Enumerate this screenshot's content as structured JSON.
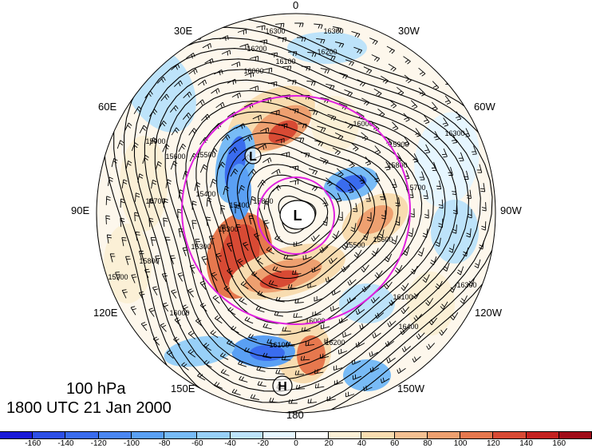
{
  "map": {
    "projection": "north-polar-stereographic",
    "longitude_labels": {
      "top": "0",
      "top_left": "30E",
      "top_right": "30W",
      "upper_left": "60E",
      "upper_right": "60W",
      "left": "90E",
      "right": "90W",
      "lower_left": "120E",
      "lower_right": "120W",
      "bottom_left": "150E",
      "bottom_right": "150W",
      "bottom": "180"
    },
    "contour_labels": [
      "16300",
      "16300",
      "16400",
      "16200",
      "16200",
      "16100",
      "16000",
      "16000",
      "15900",
      "15800",
      "15700",
      "15600",
      "15500",
      "15400",
      "15300",
      "15300",
      "15400",
      "15500",
      "15600",
      "15700",
      "15800",
      "15900",
      "16000",
      "16100",
      "16200",
      "16300",
      "16300",
      "16400",
      "16200",
      "16100",
      "16000",
      "15900",
      "15800"
    ],
    "pressure_centers": [
      {
        "label": "L",
        "kind": "low"
      },
      {
        "label": "L",
        "kind": "low"
      },
      {
        "label": "H",
        "kind": "high"
      }
    ],
    "colors": {
      "ring": "#e020e0",
      "contour": "#000000"
    }
  },
  "title": {
    "level": "100 hPa",
    "time": "1800 UTC 21 Jan 2000"
  },
  "colorbar": {
    "ticks": [
      "-160",
      "-140",
      "-120",
      "-100",
      "-80",
      "-60",
      "-40",
      "-20",
      "0",
      "20",
      "40",
      "60",
      "80",
      "100",
      "120",
      "140",
      "160"
    ],
    "colors": [
      "#1a1ad8",
      "#2d4fe6",
      "#3a6cee",
      "#4a86f2",
      "#5aa0f4",
      "#78bbf6",
      "#98d0f8",
      "#bde3fa",
      "#e6f6ff",
      "#ffffff",
      "#fbf0d6",
      "#f8dcb0",
      "#f4c092",
      "#eea070",
      "#e6784e",
      "#d84a34",
      "#c42220",
      "#a00c18"
    ]
  }
}
